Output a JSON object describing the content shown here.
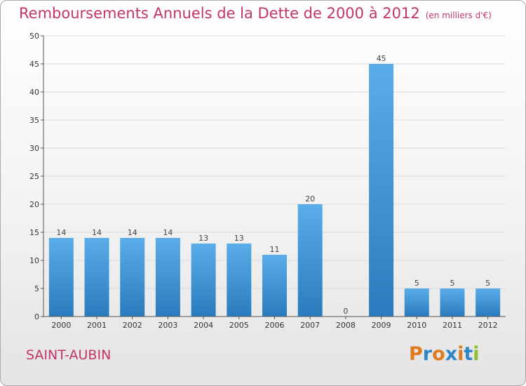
{
  "title": "Remboursements Annuels de la Dette de 2000 à 2012",
  "subtitle": "(en milliers d'€)",
  "city": "SAINT-AUBIN",
  "logo": {
    "text": "Proxiti",
    "colors": [
      "#e07a1f",
      "#2e86c8",
      "#e07a1f",
      "#2e86c8",
      "#e07a1f",
      "#2e86c8",
      "#8dbf2e"
    ]
  },
  "colors": {
    "title": "#c3356a",
    "bar_light": "#5aade8",
    "bar_dark": "#2a7bbd"
  },
  "chart_data": {
    "type": "bar",
    "categories": [
      "2000",
      "2001",
      "2002",
      "2003",
      "2004",
      "2005",
      "2006",
      "2007",
      "2008",
      "2009",
      "2010",
      "2011",
      "2012"
    ],
    "values": [
      14,
      14,
      14,
      14,
      13,
      13,
      11,
      20,
      0,
      45,
      5,
      5,
      5
    ],
    "data_labels": [
      "14",
      "14",
      "14",
      "14",
      "13",
      "13",
      "11",
      "20",
      "0",
      "45",
      "5",
      "5",
      "5"
    ],
    "yticks": [
      0,
      5,
      10,
      15,
      20,
      25,
      30,
      35,
      40,
      45,
      50
    ],
    "ylim": [
      0,
      50
    ],
    "grid": true
  }
}
